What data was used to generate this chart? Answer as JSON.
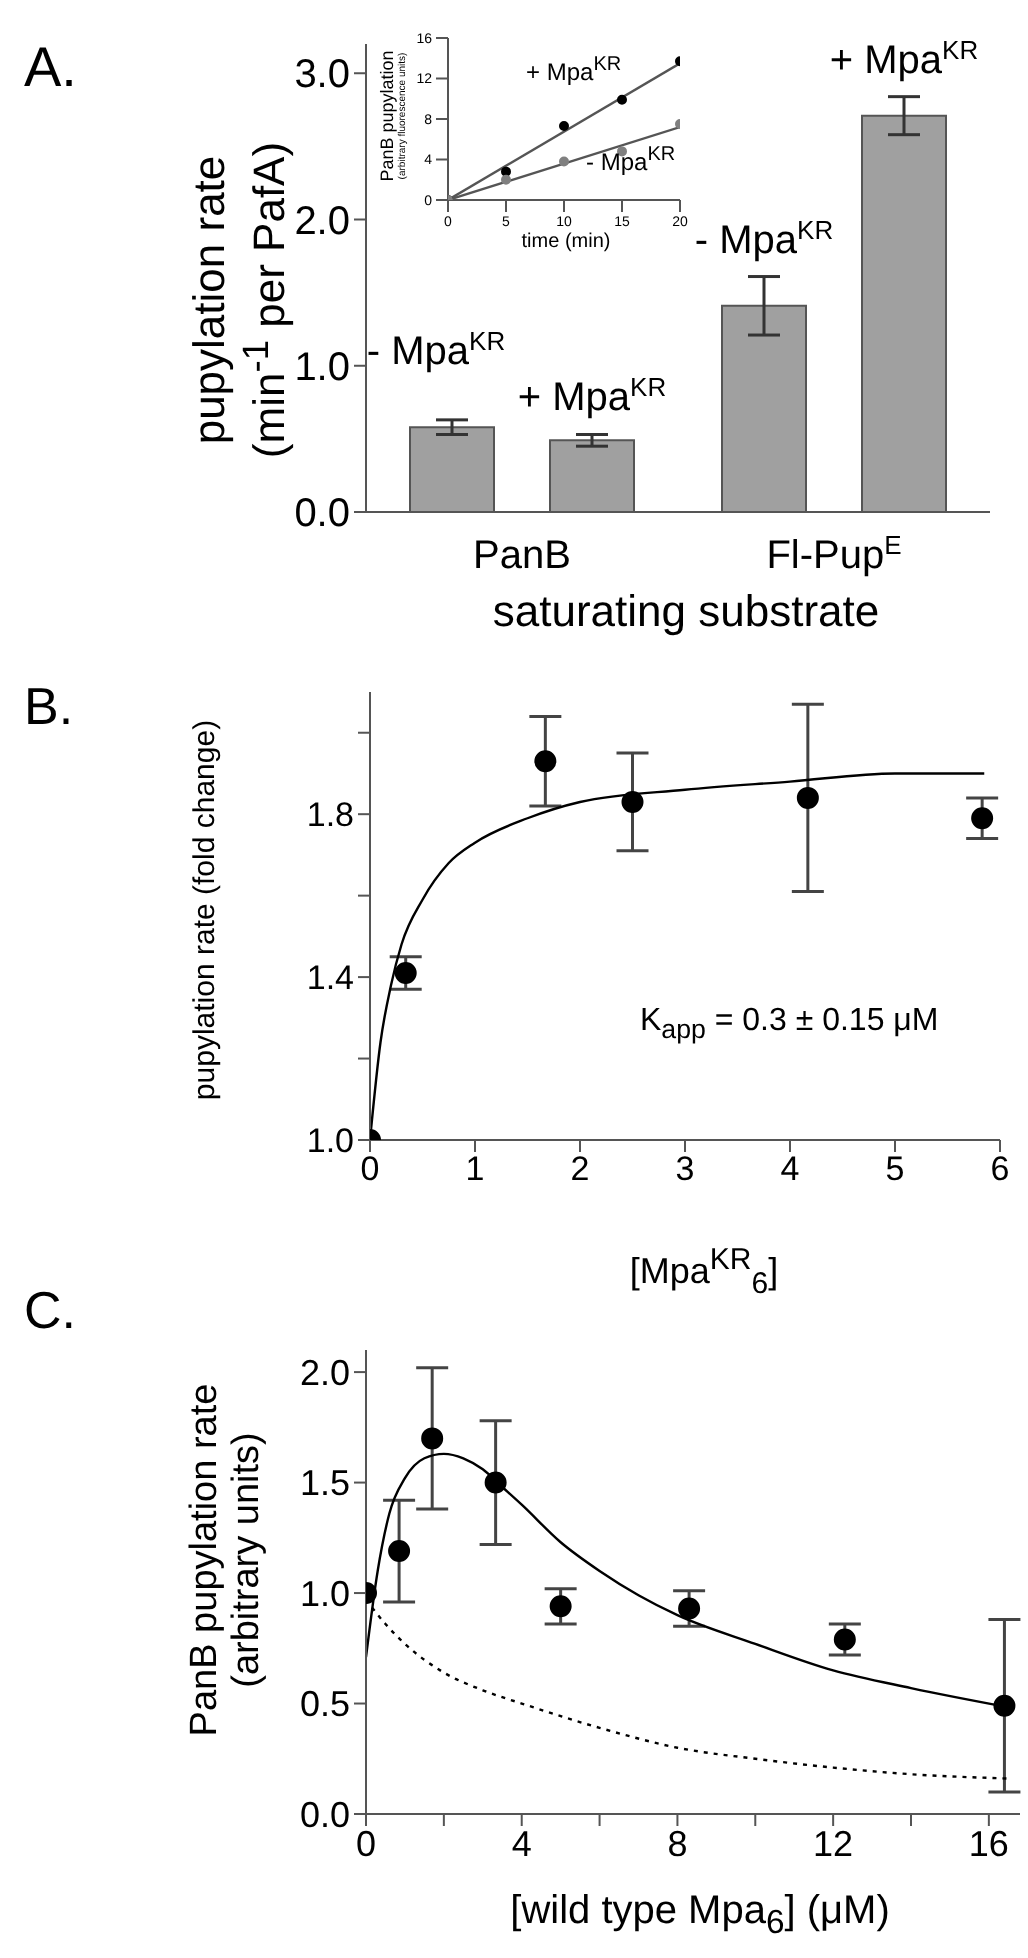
{
  "chart_data": [
    {
      "type": "bar",
      "annotations": [
        "A."
      ],
      "xlabel": "saturating substrate",
      "ylabel": "pupylation rate\n(min$^{-1}$ per PafA)",
      "categories": [
        "PanB",
        "Fl-Pup$^{E}$"
      ],
      "series": [
        {
          "name": "- Mpa$^{KR}$",
          "color": "#a0a0a0",
          "values": [
            0.58,
            1.41
          ],
          "errors": [
            0.05,
            0.2
          ]
        },
        {
          "name": "+ Mpa$^{KR}$",
          "color": "#a0a0a0",
          "values": [
            0.49,
            2.71
          ],
          "errors": [
            0.04,
            0.13
          ]
        }
      ],
      "ylim": [
        0,
        3.2
      ],
      "yticks": [
        {
          "value": 0,
          "label": "0.0"
        },
        {
          "value": 1,
          "label": "1.0"
        },
        {
          "value": 2,
          "label": "2.0"
        },
        {
          "value": 3,
          "label": "3.0"
        }
      ]
    },
    {
      "type": "scatter",
      "xlabel": "time (min)",
      "ylabel": "PanB pupylation\n(arbitrary fluorescence units)",
      "x": [
        0,
        5,
        10,
        15,
        20
      ],
      "series": [
        {
          "name": "+ Mpa$^{KR}$",
          "color": "#000000",
          "values": [
            0,
            2.8,
            7.3,
            9.9,
            13.7
          ]
        },
        {
          "name": "- Mpa$^{KR}$",
          "color": "#808080",
          "values": [
            0,
            2.0,
            3.8,
            4.8,
            7.5
          ]
        },
        {
          "type": "line",
          "color": "#555555",
          "marker": "none",
          "x": [
            0,
            20
          ],
          "values": [
            0,
            13.5
          ]
        },
        {
          "type": "line",
          "color": "#555555",
          "marker": "none",
          "x": [
            0,
            20
          ],
          "values": [
            0,
            7.2
          ]
        }
      ],
      "xlim": [
        0,
        20
      ],
      "ylim": [
        0,
        16
      ],
      "xticks": [
        0,
        5,
        10,
        15,
        20
      ],
      "yticks": [
        0,
        4,
        8,
        12,
        16
      ],
      "marker": "circle"
    },
    {
      "type": "scatter",
      "annotations": [
        "B.",
        "K$_{app}$ = 0.3 ± 0.15 μM"
      ],
      "xlabel": "[Mpa$^{KR}$$_{6}$]",
      "ylabel": "pupylation rate (fold change)",
      "series": [
        {
          "color": "#000000",
          "x": [
            0,
            0.34,
            1.67,
            2.5,
            4.17,
            5.83
          ],
          "values": [
            1.0,
            1.41,
            1.93,
            1.83,
            1.84,
            1.79
          ],
          "errors": [
            null,
            0.04,
            0.11,
            0.12,
            0.23,
            0.05
          ]
        },
        {
          "type": "line",
          "color": "#000000",
          "marker": "none",
          "x": [
            0,
            0.1,
            0.2,
            0.3,
            0.5,
            0.75,
            1,
            1.5,
            2,
            3,
            4,
            5,
            5.85
          ],
          "values": [
            1.0,
            1.24,
            1.38,
            1.48,
            1.59,
            1.68,
            1.73,
            1.79,
            1.83,
            1.86,
            1.88,
            1.9,
            1.9
          ]
        }
      ],
      "xlim": [
        0,
        6
      ],
      "ylim": [
        1,
        2.1
      ],
      "xticks": [
        0,
        1,
        2,
        3,
        4,
        5,
        6
      ],
      "yticks": [
        {
          "value": 1,
          "label": "1.0"
        },
        {
          "value": 1.2,
          "label": null
        },
        {
          "value": 1.4,
          "label": "1.4"
        },
        {
          "value": 1.6,
          "label": null
        },
        {
          "value": 1.8,
          "label": "1.8"
        },
        {
          "value": 2,
          "label": null
        }
      ],
      "marker": "circle"
    },
    {
      "type": "scatter",
      "annotations": [
        "C."
      ],
      "xlabel": "[wild type Mpa$_{6}$] (μM)",
      "ylabel": "PanB pupylation rate\n(arbitrary units)",
      "series": [
        {
          "color": "#000000",
          "x": [
            0,
            0.85,
            1.7,
            3.33,
            5,
            8.3,
            12.3,
            16.4
          ],
          "values": [
            1.0,
            1.19,
            1.7,
            1.5,
            0.94,
            0.93,
            0.79,
            0.49
          ],
          "errors": [
            null,
            0.23,
            0.32,
            0.28,
            0.08,
            0.08,
            0.07,
            0.39
          ]
        },
        {
          "type": "line",
          "color": "#000000",
          "marker": "none",
          "x": [
            0,
            0.3,
            0.6,
            1,
            1.5,
            2,
            2.5,
            3,
            3.5,
            4,
            5,
            6,
            7,
            8,
            10,
            12,
            14,
            16.6
          ],
          "values": [
            0.71,
            1.1,
            1.36,
            1.52,
            1.61,
            1.63,
            1.61,
            1.56,
            1.48,
            1.4,
            1.23,
            1.1,
            0.99,
            0.9,
            0.77,
            0.65,
            0.57,
            0.48
          ]
        },
        {
          "type": "line",
          "color": "#000000",
          "marker": "none",
          "line_style": "dotted",
          "x": [
            0,
            0.5,
            1,
            2,
            3,
            4,
            6,
            8,
            10,
            12,
            14,
            16.6
          ],
          "values": [
            0.97,
            0.86,
            0.77,
            0.64,
            0.56,
            0.5,
            0.39,
            0.3,
            0.25,
            0.21,
            0.18,
            0.16
          ]
        }
      ],
      "xlim": [
        0,
        16.8
      ],
      "ylim": [
        0,
        2.1
      ],
      "xticks": [
        0,
        {
          "value": 2,
          "label": null
        },
        4,
        {
          "value": 6,
          "label": null
        },
        8,
        {
          "value": 10,
          "label": null
        },
        12,
        {
          "value": 14,
          "label": null
        },
        16
      ],
      "yticks": [
        {
          "value": 0,
          "label": "0.0"
        },
        {
          "value": 0.5,
          "label": "0.5"
        },
        {
          "value": 1,
          "label": "1.0"
        },
        {
          "value": 1.5,
          "label": "1.5"
        },
        {
          "value": 2,
          "label": "2.0"
        }
      ],
      "marker": "circle"
    }
  ]
}
